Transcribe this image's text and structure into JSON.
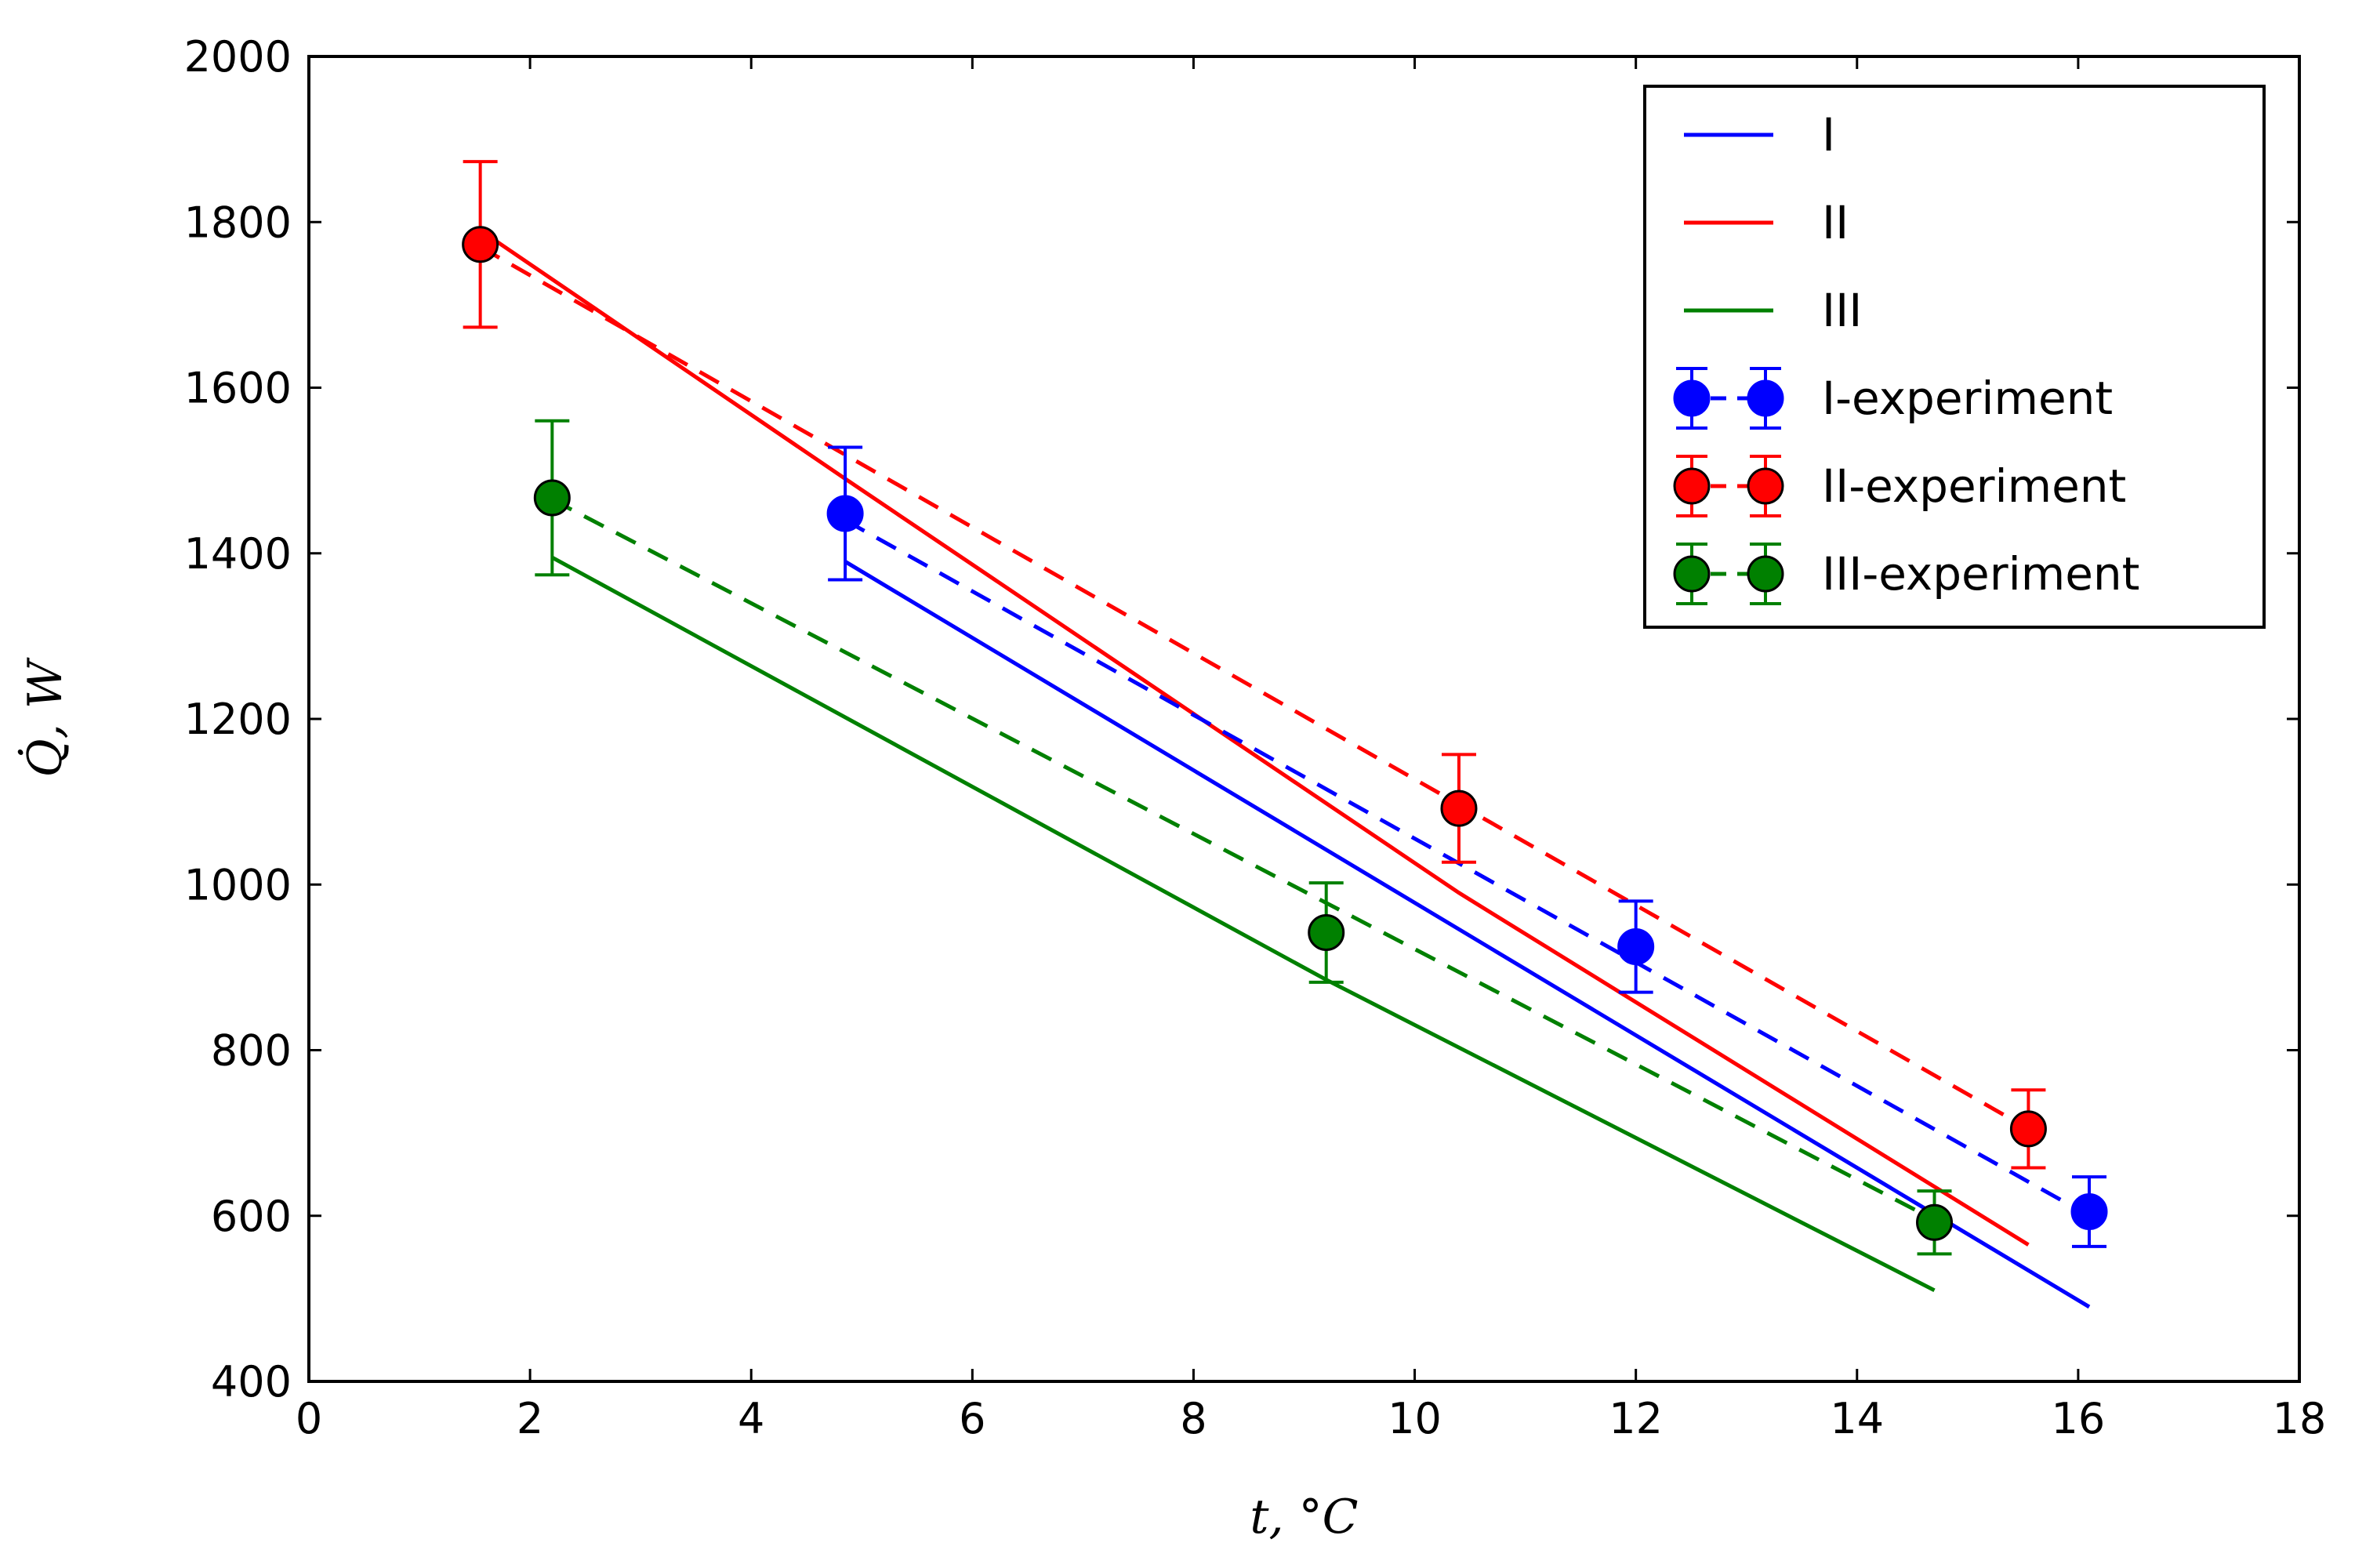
{
  "chart_data": {
    "type": "line",
    "title": "",
    "xlabel": "t, °C",
    "ylabel": "Q̇, W",
    "xlim": [
      0,
      18
    ],
    "ylim": [
      400,
      2000
    ],
    "grid": false,
    "legend_position": "top-right",
    "x_ticks": [
      0,
      2,
      4,
      6,
      8,
      10,
      12,
      14,
      16,
      18
    ],
    "y_ticks": [
      400,
      600,
      800,
      1000,
      1200,
      1400,
      1600,
      1800,
      2000
    ],
    "model_series": [
      {
        "name": "I",
        "color": "#0000ff",
        "style": "solid",
        "x": [
          4.85,
          16.1
        ],
        "y": [
          1390,
          490
        ]
      },
      {
        "name": "II",
        "color": "#ff0000",
        "style": "solid",
        "x": [
          1.55,
          4.85,
          10.4,
          15.55
        ],
        "y": [
          1790,
          1490,
          990,
          565
        ]
      },
      {
        "name": "III",
        "color": "#008000",
        "style": "solid",
        "x": [
          2.2,
          9.2,
          14.7
        ],
        "y": [
          1395,
          885,
          510
        ]
      }
    ],
    "fit_series": [
      {
        "name": "I-fit",
        "color": "#0000ff",
        "x": [
          4.85,
          16.1
        ],
        "y": [
          1440,
          600
        ]
      },
      {
        "name": "II-fit",
        "color": "#ff0000",
        "x": [
          1.55,
          15.55
        ],
        "y": [
          1770,
          705
        ]
      },
      {
        "name": "III-fit",
        "color": "#008000",
        "x": [
          2.2,
          14.7
        ],
        "y": [
          1465,
          595
        ]
      }
    ],
    "experiment_series": [
      {
        "name": "I-experiment",
        "color": "#0000ff",
        "marker_edge": "#0000ff",
        "points": [
          {
            "x": 4.85,
            "y": 1448,
            "err": 80
          },
          {
            "x": 12.0,
            "y": 925,
            "err": 55
          },
          {
            "x": 16.1,
            "y": 605,
            "err": 42
          }
        ]
      },
      {
        "name": "II-experiment",
        "color": "#ff0000",
        "marker_edge": "#000000",
        "points": [
          {
            "x": 1.55,
            "y": 1773,
            "err": 100
          },
          {
            "x": 10.4,
            "y": 1092,
            "err": 65
          },
          {
            "x": 15.55,
            "y": 705,
            "err": 47
          }
        ]
      },
      {
        "name": "III-experiment",
        "color": "#008000",
        "marker_edge": "#000000",
        "points": [
          {
            "x": 2.2,
            "y": 1467,
            "err": 93
          },
          {
            "x": 9.2,
            "y": 942,
            "err": 60
          },
          {
            "x": 14.7,
            "y": 592,
            "err": 38
          }
        ]
      }
    ],
    "legend": [
      {
        "label": "I",
        "color": "#0000ff",
        "kind": "line"
      },
      {
        "label": "II",
        "color": "#ff0000",
        "kind": "line"
      },
      {
        "label": "III",
        "color": "#008000",
        "kind": "line"
      },
      {
        "label": "I-experiment",
        "color": "#0000ff",
        "kind": "errorbar",
        "marker_edge": "#0000ff"
      },
      {
        "label": "II-experiment",
        "color": "#ff0000",
        "kind": "errorbar",
        "marker_edge": "#000000"
      },
      {
        "label": "III-experiment",
        "color": "#008000",
        "kind": "errorbar",
        "marker_edge": "#000000"
      }
    ]
  }
}
